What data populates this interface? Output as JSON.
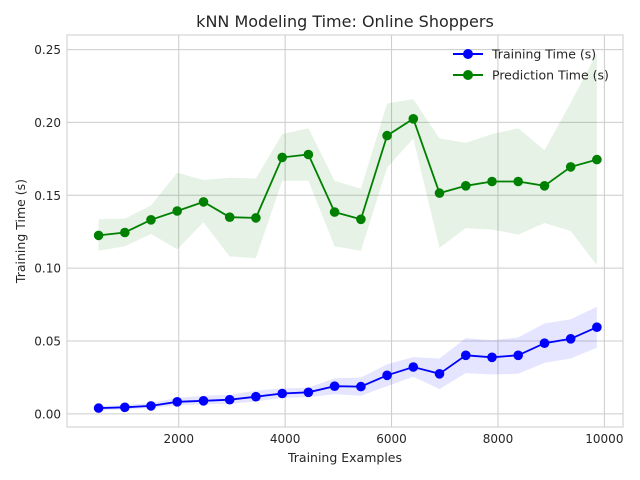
{
  "chart_data": {
    "type": "line",
    "title": "kNN Modeling Time: Online Shoppers",
    "xlabel": "Training Examples",
    "ylabel": "Training Time (s)",
    "xlim": [
      -100,
      10350
    ],
    "ylim": [
      -0.009,
      0.26
    ],
    "xticks": [
      2000,
      4000,
      6000,
      8000,
      10000
    ],
    "yticks": [
      0.0,
      0.05,
      0.1,
      0.15,
      0.2,
      0.25
    ],
    "grid": true,
    "legend_position": "top-right",
    "x": [
      493,
      986,
      1479,
      1972,
      2465,
      2958,
      3451,
      3944,
      4437,
      4930,
      5423,
      5916,
      6409,
      6902,
      7395,
      7888,
      8381,
      8874,
      9367,
      9860
    ],
    "series": [
      {
        "name": "Training Time (s)",
        "color": "#0000ff",
        "band_color": "#0000ff",
        "values": [
          0.004,
          0.0045,
          0.0055,
          0.0083,
          0.009,
          0.0097,
          0.0118,
          0.014,
          0.0148,
          0.019,
          0.0187,
          0.0265,
          0.0322,
          0.0275,
          0.0402,
          0.0388,
          0.0402,
          0.0485,
          0.0515,
          0.0595
        ],
        "upper": [
          0.0055,
          0.006,
          0.0075,
          0.011,
          0.0125,
          0.013,
          0.016,
          0.0175,
          0.018,
          0.0245,
          0.025,
          0.034,
          0.039,
          0.038,
          0.052,
          0.0505,
          0.0525,
          0.062,
          0.065,
          0.0735
        ],
        "lower": [
          0.0025,
          0.003,
          0.004,
          0.006,
          0.0065,
          0.007,
          0.0085,
          0.011,
          0.0115,
          0.0135,
          0.0125,
          0.019,
          0.0255,
          0.017,
          0.028,
          0.027,
          0.0275,
          0.035,
          0.038,
          0.0455
        ]
      },
      {
        "name": "Prediction Time (s)",
        "color": "#008000",
        "band_color": "#008000",
        "values": [
          0.1225,
          0.1245,
          0.1332,
          0.1392,
          0.1455,
          0.135,
          0.1345,
          0.176,
          0.178,
          0.1385,
          0.1335,
          0.191,
          0.2025,
          0.1515,
          0.1565,
          0.1595,
          0.1595,
          0.1565,
          0.1695,
          0.1745
        ],
        "upper": [
          0.1335,
          0.134,
          0.143,
          0.1655,
          0.1605,
          0.162,
          0.1615,
          0.192,
          0.196,
          0.16,
          0.1545,
          0.213,
          0.216,
          0.189,
          0.186,
          0.192,
          0.196,
          0.181,
          0.2135,
          0.2475
        ],
        "lower": [
          0.112,
          0.115,
          0.1235,
          0.113,
          0.1315,
          0.108,
          0.107,
          0.16,
          0.16,
          0.115,
          0.112,
          0.169,
          0.189,
          0.114,
          0.1275,
          0.1265,
          0.123,
          0.131,
          0.1255,
          0.102
        ]
      }
    ]
  }
}
